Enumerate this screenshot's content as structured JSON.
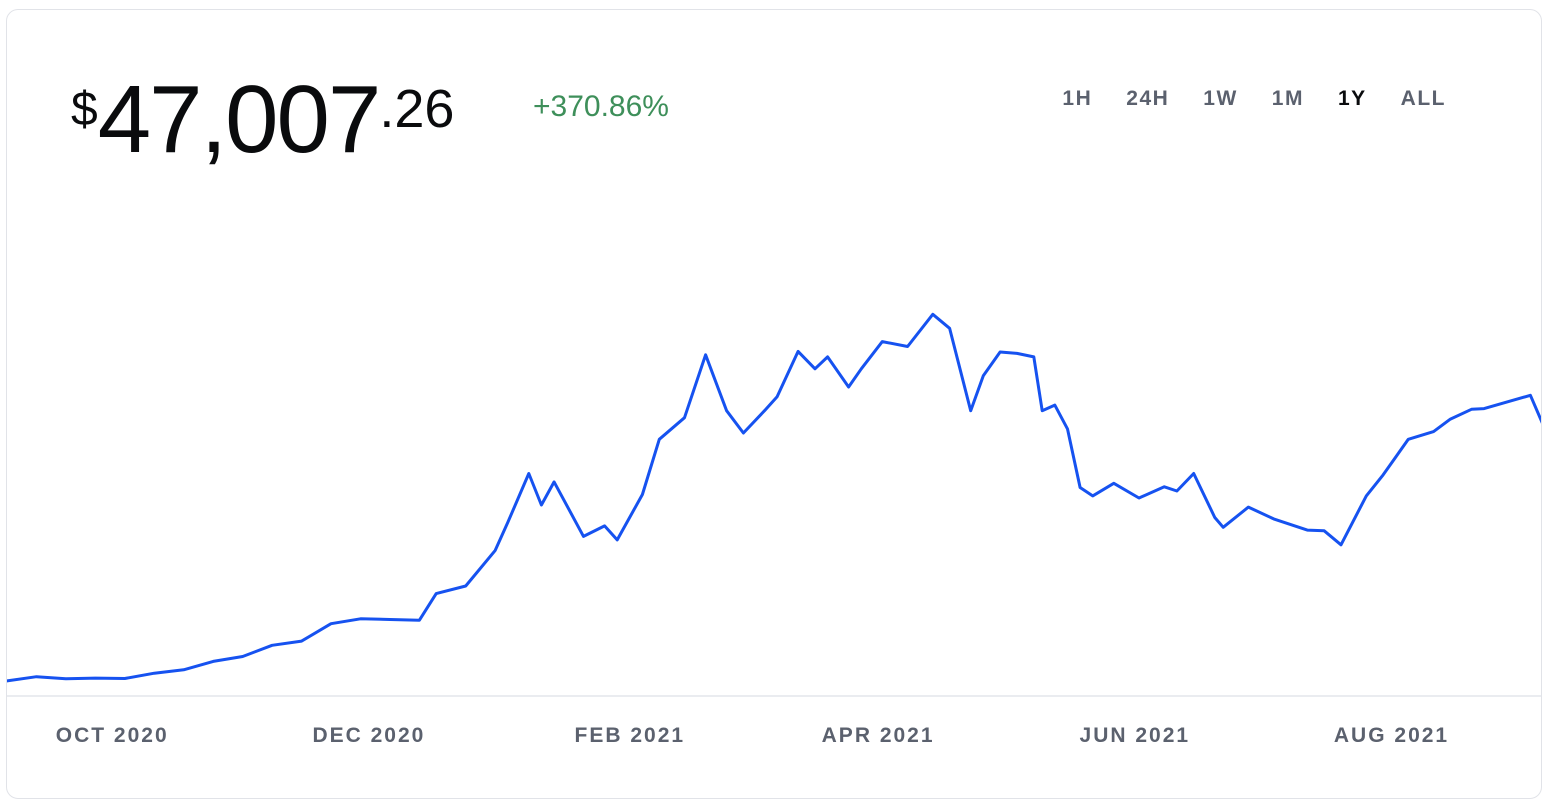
{
  "header": {
    "price": {
      "currency_symbol": "$",
      "whole": "47,007",
      "fraction": ".26"
    },
    "change": "+370.86%",
    "change_color": "#3e8f5a"
  },
  "time_ranges": [
    {
      "label": "1H",
      "active": false
    },
    {
      "label": "24H",
      "active": false
    },
    {
      "label": "1W",
      "active": false
    },
    {
      "label": "1M",
      "active": false
    },
    {
      "label": "1Y",
      "active": true
    },
    {
      "label": "ALL",
      "active": false
    }
  ],
  "chart_data": {
    "type": "line",
    "title": "",
    "xlabel": "",
    "ylabel": "",
    "line_color": "#1652f0",
    "grid": false,
    "x_tick_labels": [
      "OCT 2020",
      "DEC 2020",
      "FEB 2021",
      "APR 2021",
      "JUN 2021",
      "AUG 2021"
    ],
    "x_tick_dates": [
      "2020-10-01",
      "2020-12-01",
      "2021-02-01",
      "2021-04-01",
      "2021-06-01",
      "2021-08-01"
    ],
    "x_range": [
      "2020-09-06",
      "2021-09-06"
    ],
    "y_range": [
      9000,
      66000
    ],
    "series": [
      {
        "x": [
          "2020-09-06",
          "2020-09-13",
          "2020-09-20",
          "2020-09-27",
          "2020-10-04",
          "2020-10-11",
          "2020-10-18",
          "2020-10-25",
          "2020-11-01",
          "2020-11-08",
          "2020-11-15",
          "2020-11-22",
          "2020-11-29",
          "2020-12-06",
          "2020-12-13",
          "2020-12-17",
          "2020-12-24",
          "2020-12-31",
          "2021-01-03",
          "2021-01-08",
          "2021-01-11",
          "2021-01-14",
          "2021-01-21",
          "2021-01-26",
          "2021-01-29",
          "2021-02-04",
          "2021-02-08",
          "2021-02-14",
          "2021-02-19",
          "2021-02-21",
          "2021-02-24",
          "2021-02-28",
          "2021-03-05",
          "2021-03-08",
          "2021-03-13",
          "2021-03-17",
          "2021-03-20",
          "2021-03-25",
          "2021-03-28",
          "2021-04-02",
          "2021-04-08",
          "2021-04-14",
          "2021-04-18",
          "2021-04-23",
          "2021-04-26",
          "2021-04-30",
          "2021-05-04",
          "2021-05-08",
          "2021-05-10",
          "2021-05-13",
          "2021-05-16",
          "2021-05-19",
          "2021-05-22",
          "2021-05-27",
          "2021-06-02",
          "2021-06-08",
          "2021-06-11",
          "2021-06-15",
          "2021-06-20",
          "2021-06-22",
          "2021-06-28",
          "2021-07-04",
          "2021-07-12",
          "2021-07-16",
          "2021-07-20",
          "2021-07-26",
          "2021-07-30",
          "2021-08-05",
          "2021-08-11",
          "2021-08-15",
          "2021-08-20",
          "2021-08-23",
          "2021-09-03",
          "2021-09-06"
        ],
        "values": [
          10300,
          10900,
          10600,
          10700,
          10650,
          11400,
          11900,
          13100,
          13800,
          15400,
          16000,
          18500,
          19200,
          19100,
          19000,
          22800,
          23900,
          29000,
          33000,
          40000,
          35500,
          38800,
          31000,
          32500,
          30500,
          37000,
          44900,
          48000,
          57000,
          53800,
          49000,
          45800,
          49000,
          51000,
          57500,
          55000,
          56700,
          52400,
          55000,
          58900,
          58200,
          62800,
          60800,
          49000,
          54000,
          57400,
          57200,
          56700,
          49000,
          49800,
          46400,
          38000,
          36800,
          38600,
          36500,
          38100,
          37500,
          40000,
          33700,
          32300,
          35200,
          33500,
          31900,
          31800,
          29800,
          36800,
          39800,
          44900,
          46000,
          47800,
          49200,
          49300,
          51200,
          47007
        ]
      }
    ]
  }
}
